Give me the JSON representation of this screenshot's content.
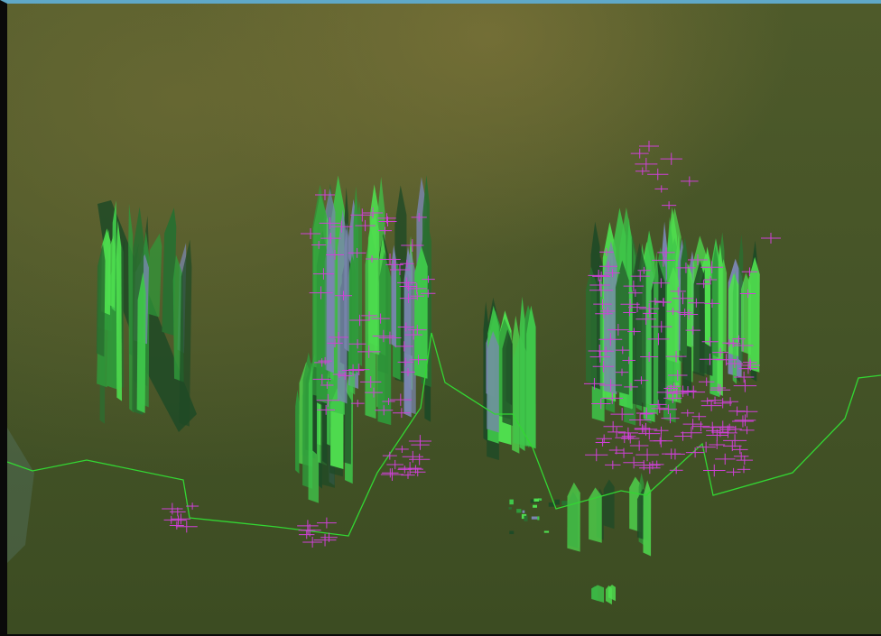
{
  "viewport": {
    "background_top": "#4e5a2a",
    "background_bottom": "#3c4c22",
    "window_border_top": "#5fa8c8",
    "window_border": "#0a0a0a"
  },
  "palette": {
    "formation_light": "#4fdf4f",
    "formation_mid": "#2f9a3a",
    "formation_dark": "#1f4a26",
    "formation_tint": "#7a86b0",
    "marker": "#d040d8",
    "path_line": "#33d633"
  },
  "icons": {
    "marker_shape": "plus-cross",
    "formation_shape": "crystal-spike"
  }
}
